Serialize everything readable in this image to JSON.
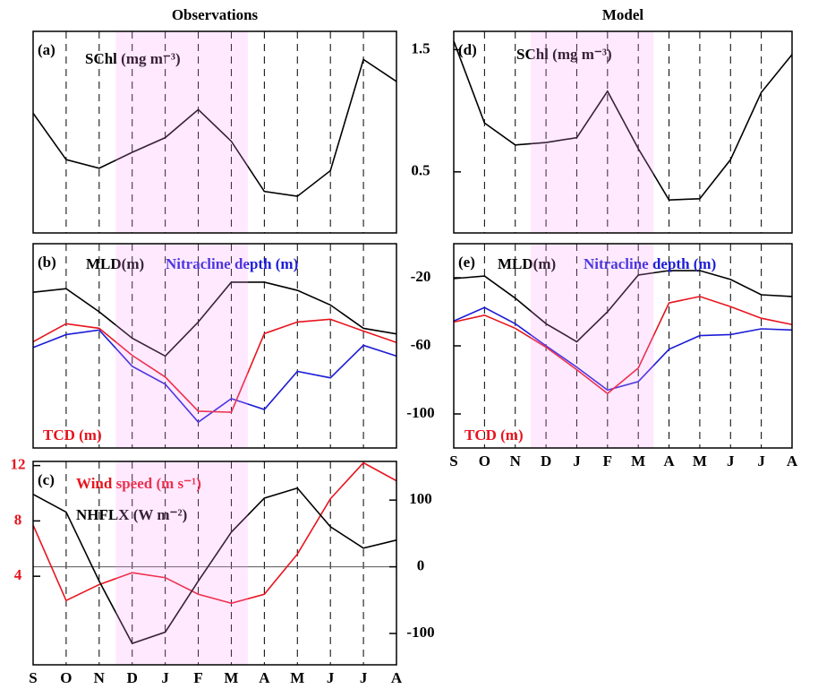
{
  "chart_data": [
    {
      "type": "line",
      "title": "Observations",
      "panel_label": "(a)",
      "ylim": [
        0,
        1.65
      ],
      "grid": true,
      "series": [
        {
          "name": "SChl (mg m⁻³)",
          "color": "#000000",
          "values": [
            0.98,
            0.6,
            0.53,
            0.66,
            0.78,
            1.01,
            0.75,
            0.34,
            0.3,
            0.51,
            1.42,
            1.24
          ]
        }
      ]
    },
    {
      "type": "line",
      "panel_label": "(b)",
      "ylim": [
        -120,
        0
      ],
      "grid": true,
      "series": [
        {
          "name": "MLD(m)",
          "color": "#000000",
          "values": [
            -28.5,
            -26.4,
            -40,
            -55.5,
            -66,
            -46,
            -22.6,
            -22.6,
            -27.4,
            -36,
            -49.7,
            -53
          ]
        },
        {
          "name": "Nitracline depth (m)",
          "color": "#1c1cd6",
          "values": [
            -61,
            -53.4,
            -50.7,
            -72,
            -82.5,
            -104.8,
            -91,
            -97.4,
            -75,
            -78.8,
            -59.7,
            -66
          ]
        },
        {
          "name": "TCD (m)",
          "color": "#e8141e",
          "values": [
            -57.6,
            -47,
            -49.7,
            -65.6,
            -78.3,
            -98.4,
            -99,
            -52.8,
            -46,
            -44.4,
            -51.3,
            -58
          ]
        }
      ]
    },
    {
      "type": "line",
      "panel_label": "(c)",
      "categories": [
        "S",
        "O",
        "N",
        "D",
        "J",
        "F",
        "M",
        "A",
        "M",
        "J",
        "J",
        "A"
      ],
      "ylim": [
        -2.4,
        12.3
      ],
      "yticks": [
        4,
        8,
        12
      ],
      "y2lim": [
        -147,
        158
      ],
      "y2ticks": [
        -100,
        0,
        100
      ],
      "zero_line": true,
      "grid": true,
      "series": [
        {
          "name": "Wind speed (m s⁻¹)",
          "color": "#e8141e",
          "values": [
            7.7,
            2.25,
            3.4,
            4.26,
            3.9,
            2.7,
            2.05,
            2.7,
            5.6,
            9.6,
            12.2,
            10.9
          ]
        },
        {
          "name": "NHFLX (W m⁻²)",
          "color": "#000000",
          "axis": "y2",
          "values": [
            108.7,
            82,
            -21.5,
            -115,
            -98,
            -21.5,
            52,
            103,
            118,
            60,
            28,
            40
          ]
        }
      ]
    },
    {
      "type": "line",
      "title": "Model",
      "panel_label": "(d)",
      "ylim": [
        0,
        1.65
      ],
      "yticks": [
        0.5,
        1.5
      ],
      "grid": true,
      "series": [
        {
          "name": "SChl (mg m⁻³)",
          "color": "#000000",
          "values": [
            1.57,
            0.9,
            0.72,
            0.74,
            0.78,
            1.16,
            0.69,
            0.27,
            0.28,
            0.6,
            1.15,
            1.46
          ]
        }
      ]
    },
    {
      "type": "line",
      "panel_label": "(e)",
      "categories": [
        "S",
        "O",
        "N",
        "D",
        "J",
        "F",
        "M",
        "A",
        "M",
        "J",
        "J",
        "A"
      ],
      "ylim": [
        -120,
        0
      ],
      "yticks": [
        -100,
        -60,
        -20
      ],
      "grid": true,
      "series": [
        {
          "name": "MLD(m)",
          "color": "#000000",
          "values": [
            -20.5,
            -19,
            -32,
            -47,
            -57.6,
            -40,
            -18.4,
            -15.8,
            -15.8,
            -21,
            -30,
            -31
          ]
        },
        {
          "name": "Nitracline depth (m)",
          "color": "#1c1cd6",
          "values": [
            -45.4,
            -37.5,
            -47,
            -60,
            -72.5,
            -86,
            -81,
            -62,
            -54,
            -53.4,
            -50,
            -50.7
          ]
        },
        {
          "name": "TCD (m)",
          "color": "#e8141e",
          "values": [
            -46,
            -42,
            -49.7,
            -60.8,
            -74,
            -88,
            -73,
            -34.8,
            -31,
            -37,
            -43.8,
            -47.5
          ]
        }
      ]
    }
  ]
}
